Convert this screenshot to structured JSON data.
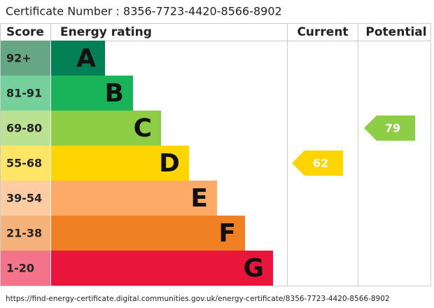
{
  "certificate": "Certificate Number : 8356-7723-4420-8566-8902",
  "headers": [
    "Score",
    "Energy rating",
    "Current",
    "Potential"
  ],
  "bands": [
    {
      "score": "92+",
      "letter": "A",
      "color": "#008054",
      "light": "#67a685"
    },
    {
      "score": "81-91",
      "letter": "B",
      "color": "#19b459",
      "light": "#75d09b"
    },
    {
      "score": "69-80",
      "letter": "C",
      "color": "#8dce46",
      "light": "#bbe293"
    },
    {
      "score": "55-68",
      "letter": "D",
      "color": "#ffd500",
      "light": "#ffe566"
    },
    {
      "score": "39-54",
      "letter": "E",
      "color": "#fcaa65",
      "light": "#fdcca2"
    },
    {
      "score": "21-38",
      "letter": "F",
      "color": "#ef8023",
      "light": "#f5b37b"
    },
    {
      "score": "1-20",
      "letter": "G",
      "color": "#e9153b",
      "light": "#f2738a"
    }
  ],
  "current": 62,
  "potential": 79,
  "url": "https://find-energy-certificate.digital.communities.gov.uk/energy-certificate/8356-7723-4420-8566-8902"
}
